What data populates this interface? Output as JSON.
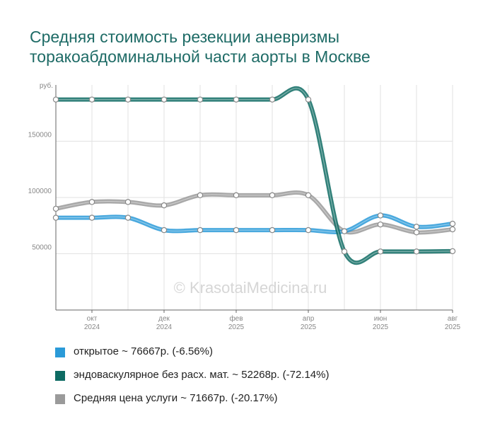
{
  "chart_data": {
    "type": "line",
    "title": [
      "Средняя стоимость резекции аневризмы",
      "торакоабдоминальной части аорты в Москве"
    ],
    "y_unit": "руб.",
    "ylim": [
      0,
      200000
    ],
    "yticks": [
      50000,
      100000,
      150000
    ],
    "ytick_labels": [
      "50000",
      "100000",
      "150000"
    ],
    "x_categories": [
      "2024-09",
      "2024-10",
      "2024-11",
      "2024-12",
      "2025-01",
      "2025-02",
      "2025-03",
      "2025-04",
      "2025-05",
      "2025-06",
      "2025-07",
      "2025-08"
    ],
    "x_tick_labels": [
      {
        "month": "окт",
        "year": "2024",
        "index": 1
      },
      {
        "month": "дек",
        "year": "2024",
        "index": 3
      },
      {
        "month": "фев",
        "year": "2025",
        "index": 5
      },
      {
        "month": "апр",
        "year": "2025",
        "index": 7
      },
      {
        "month": "июн",
        "year": "2025",
        "index": 9
      },
      {
        "month": "авг",
        "year": "2025",
        "index": 11
      }
    ],
    "grid": true,
    "legend_position": "bottom",
    "watermark": "© KrasotaiMedicina.ru",
    "series": [
      {
        "name": "открытое",
        "color": "#2a9ad8",
        "values": [
          82000,
          82000,
          82000,
          71000,
          71000,
          71000,
          71000,
          71000,
          70000,
          84000,
          74000,
          76667
        ]
      },
      {
        "name": "эндоваскулярное без расх. мат.",
        "color": "#0e6b63",
        "values": [
          187000,
          187000,
          187000,
          187000,
          187000,
          187000,
          187000,
          187000,
          52000,
          52000,
          52000,
          52268
        ]
      },
      {
        "name": "Средняя цена услуги",
        "color": "#9a9a9a",
        "values": [
          90000,
          96000,
          96000,
          93000,
          102000,
          102000,
          102000,
          102000,
          70000,
          76000,
          69000,
          71667
        ]
      }
    ]
  },
  "legend": [
    {
      "label": "открытое ~ 76667р. (-6.56%)",
      "color": "#2a9ad8"
    },
    {
      "label": "эндоваскулярное без расх. мат. ~ 52268р. (-72.14%)",
      "color": "#0e6b63"
    },
    {
      "label": "Средняя цена услуги ~ 71667р. (-20.17%)",
      "color": "#9a9a9a"
    }
  ]
}
